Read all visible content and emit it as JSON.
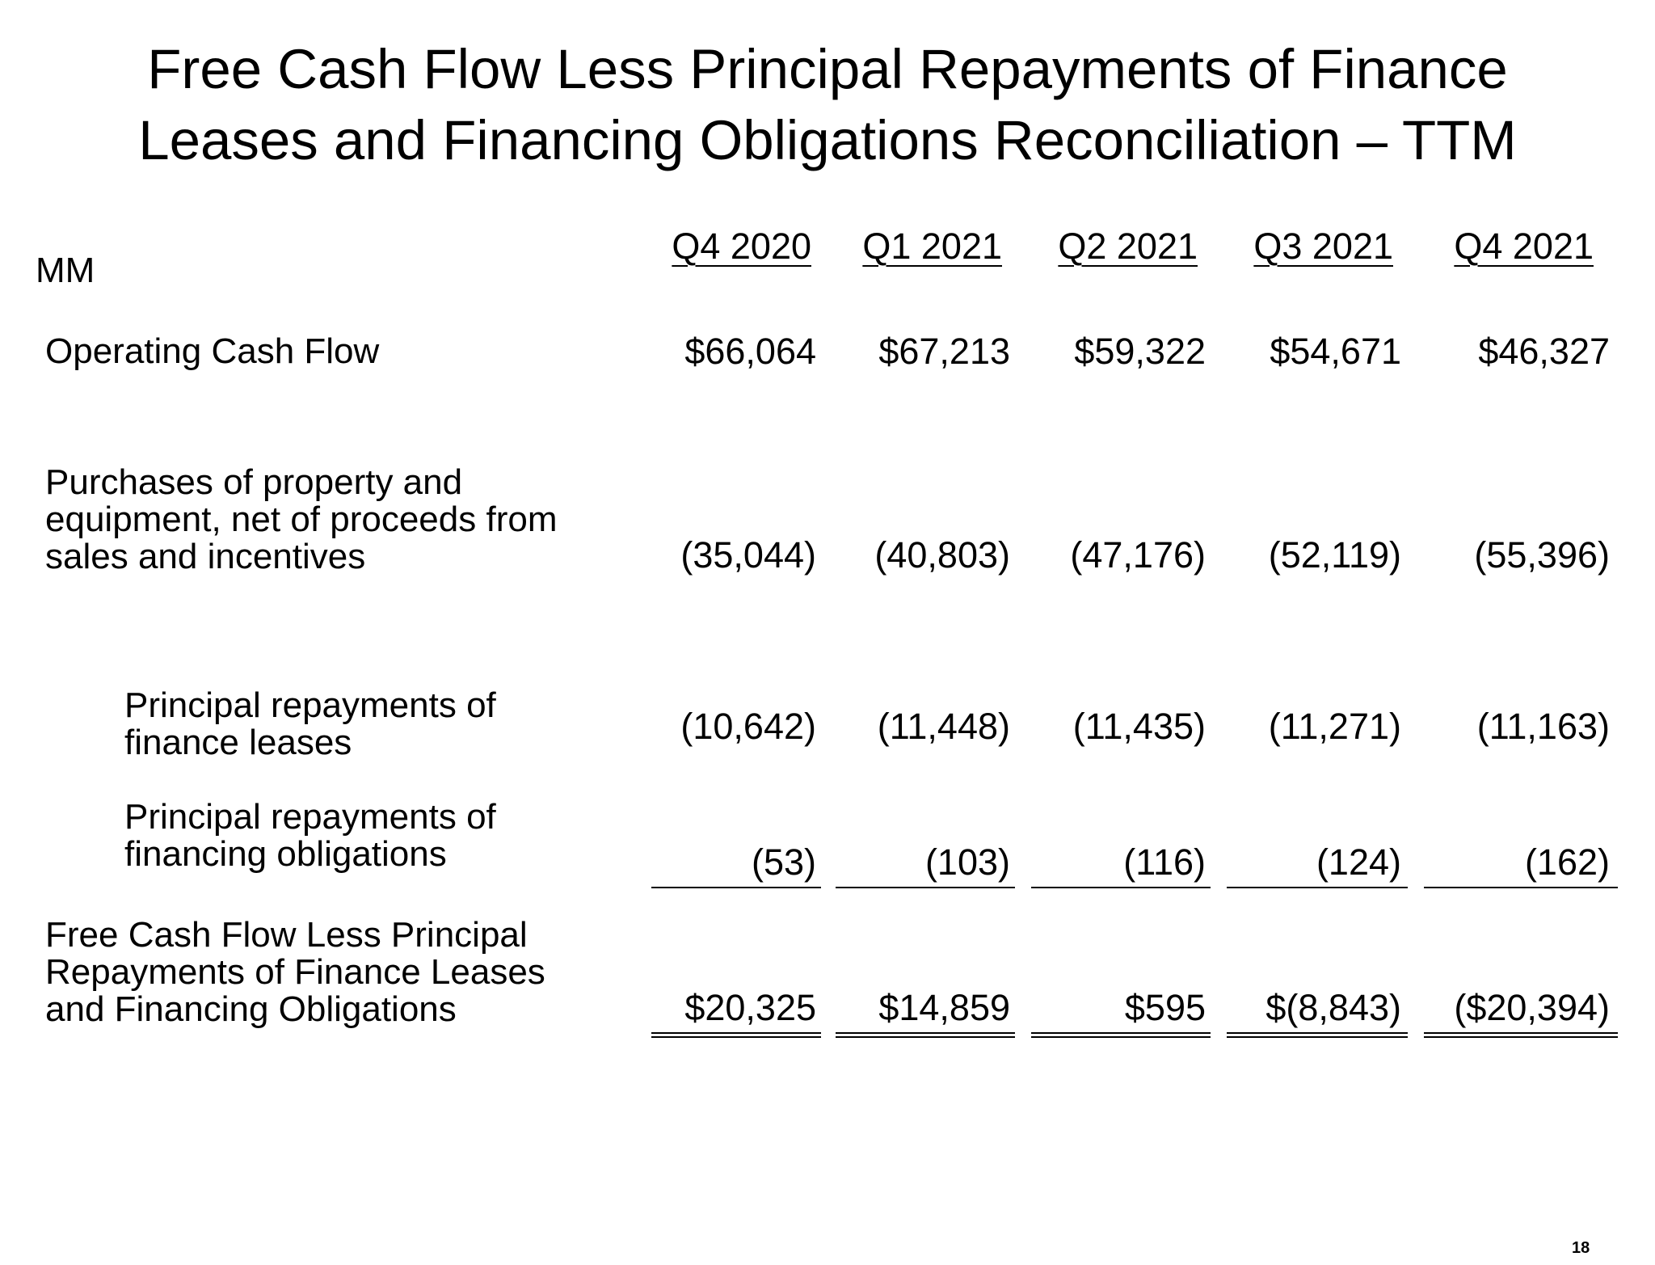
{
  "title": {
    "line1": "Free Cash Flow Less Principal Repayments of Finance",
    "line2": "Leases and Financing Obligations Reconciliation – TTM"
  },
  "unit_label": "MM",
  "columns": [
    "Q4 2020",
    "Q1 2021",
    "Q2 2021",
    "Q3 2021",
    "Q4 2021"
  ],
  "rows": [
    {
      "label_lines": [
        "Operating Cash Flow"
      ],
      "values": [
        "$66,064",
        "$67,213",
        "$59,322",
        "$54,671",
        "$46,327"
      ]
    },
    {
      "label_lines": [
        "Purchases of property and",
        "equipment, net of proceeds from",
        "sales and incentives"
      ],
      "values": [
        "(35,044)",
        "(40,803)",
        "(47,176)",
        "(52,119)",
        "(55,396)"
      ]
    },
    {
      "label_lines": [
        "Principal repayments of",
        "finance leases"
      ],
      "values": [
        "(10,642)",
        "(11,448)",
        "(11,435)",
        "(11,271)",
        "(11,163)"
      ]
    },
    {
      "label_lines": [
        "Principal repayments of",
        "financing obligations"
      ],
      "values": [
        "(53)",
        "(103)",
        "(116)",
        "(124)",
        "(162)"
      ]
    },
    {
      "label_lines": [
        "Free Cash Flow Less Principal",
        "Repayments of Finance Leases",
        "and Financing Obligations"
      ],
      "values": [
        "$20,325",
        "$14,859",
        "$595",
        "$(8,843)",
        "($20,394)"
      ]
    }
  ],
  "page_number": "18"
}
